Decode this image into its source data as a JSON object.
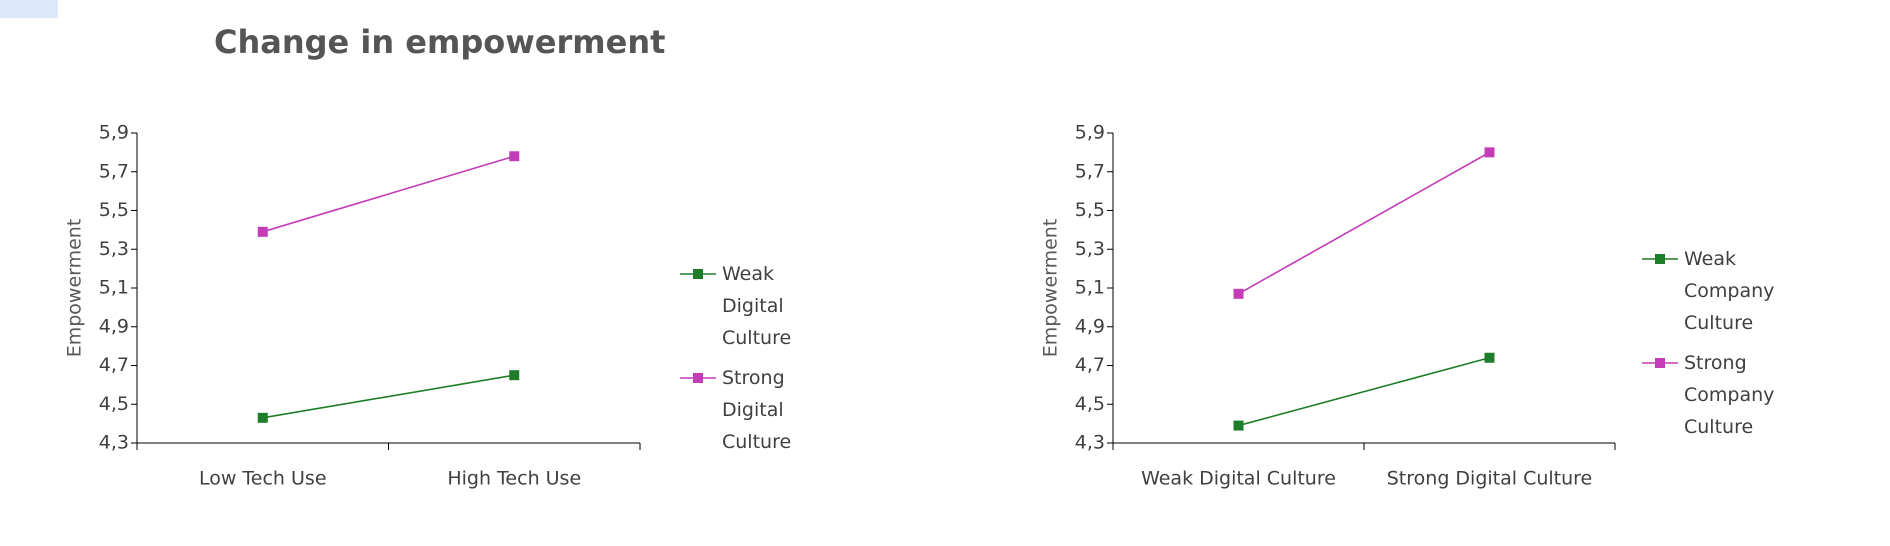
{
  "chart_data": [
    {
      "type": "line",
      "title": "Change in empowerment",
      "ylabel": "Empowerment",
      "categories": [
        "Low Tech Use",
        "High Tech Use"
      ],
      "series": [
        {
          "name": "Weak Digital Culture",
          "color": "#1e7d28",
          "values": [
            4.43,
            4.65
          ]
        },
        {
          "name": "Strong Digital Culture",
          "color": "#c43cb8",
          "values": [
            5.39,
            5.78
          ]
        }
      ],
      "ylim": [
        4.3,
        5.9
      ],
      "yticks": [
        {
          "value": 4.3,
          "label": "4,3"
        },
        {
          "value": 4.5,
          "label": "4,5"
        },
        {
          "value": 4.7,
          "label": "4,7"
        },
        {
          "value": 4.9,
          "label": "4,9"
        },
        {
          "value": 5.1,
          "label": "5,1"
        },
        {
          "value": 5.3,
          "label": "5,3"
        },
        {
          "value": 5.5,
          "label": "5,5"
        },
        {
          "value": 5.7,
          "label": "5,7"
        },
        {
          "value": 5.9,
          "label": "5,9"
        }
      ],
      "legend": "right"
    },
    {
      "type": "line",
      "ylabel": "Empowerment",
      "categories": [
        "Weak Digital Culture",
        "Strong Digital Culture"
      ],
      "series": [
        {
          "name": "Weak Company Culture",
          "color": "#1e7d28",
          "values": [
            4.39,
            4.74
          ]
        },
        {
          "name": "Strong Company Culture",
          "color": "#c43cb8",
          "values": [
            5.07,
            5.8
          ]
        }
      ],
      "ylim": [
        4.3,
        5.9
      ],
      "yticks": [
        {
          "value": 4.3,
          "label": "4,3"
        },
        {
          "value": 4.5,
          "label": "4,5"
        },
        {
          "value": 4.7,
          "label": "4,7"
        },
        {
          "value": 4.9,
          "label": "4,9"
        },
        {
          "value": 5.1,
          "label": "5,1"
        },
        {
          "value": 5.3,
          "label": "5,3"
        },
        {
          "value": 5.5,
          "label": "5,5"
        },
        {
          "value": 5.7,
          "label": "5,7"
        },
        {
          "value": 5.9,
          "label": "5,9"
        }
      ],
      "legend": "right"
    }
  ]
}
